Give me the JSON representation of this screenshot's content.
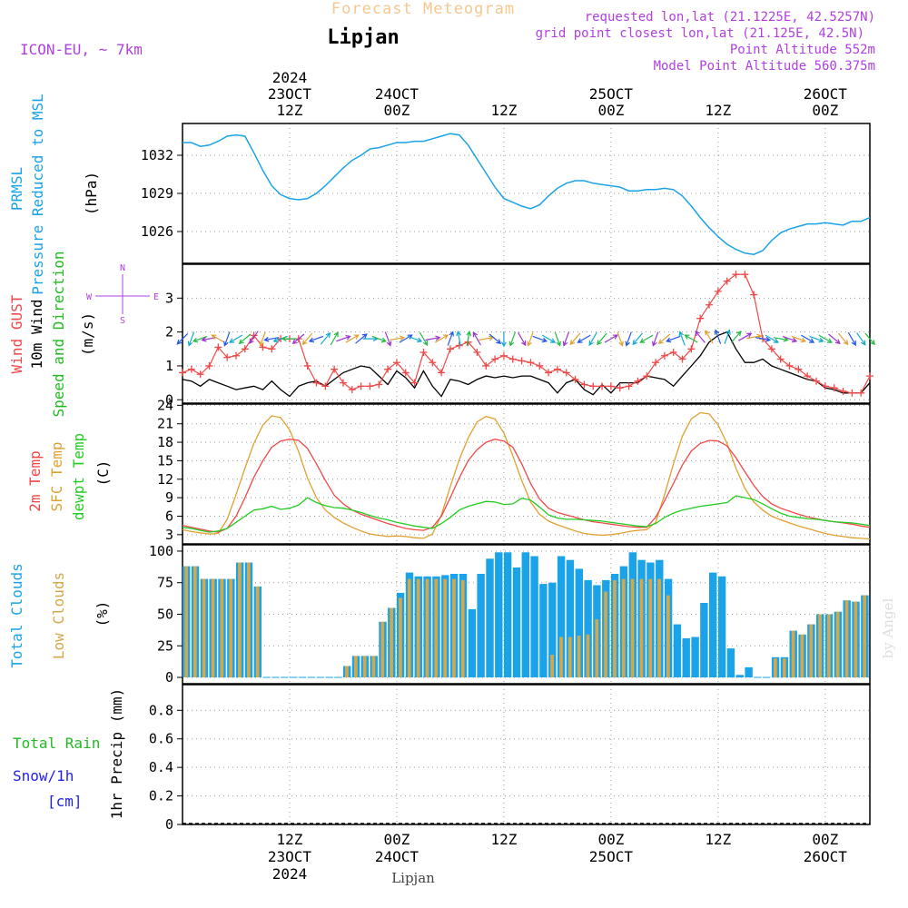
{
  "header": {
    "title": "Forecast Meteogram",
    "location": "Lipjan",
    "model": "ICON-EU, ~ 7km",
    "requested": "requested lon,lat (21.1225E, 42.5257N)",
    "grid_point": "grid point closest lon,lat (21.125E, 42.5N)",
    "point_altitude": "Point Altitude 552m",
    "model_altitude": "Model Point Altitude 560.375m",
    "footer_location": "Lipjan",
    "watermark": "by Angel"
  },
  "colors": {
    "pressure": "#1aa3e8",
    "gust": "#f04848",
    "wind": "#000000",
    "wind_dir": "#22bb22",
    "temp2m": "#f04848",
    "sfc_temp": "#e0a030",
    "dewpt": "#22cc22",
    "total_clouds": "#1aa3e8",
    "low_clouds": "#d4a84a",
    "rain": "#22bb22",
    "snow": "#2222ee",
    "purple": "#b040e0",
    "title": "#f4c890"
  },
  "time_axis": {
    "top_labels": [
      {
        "h": 12,
        "lines": [
          "2024",
          "23OCT",
          "12Z"
        ]
      },
      {
        "h": 24,
        "lines": [
          "24OCT",
          "00Z"
        ]
      },
      {
        "h": 36,
        "lines": [
          "12Z"
        ]
      },
      {
        "h": 48,
        "lines": [
          "25OCT",
          "00Z"
        ]
      },
      {
        "h": 60,
        "lines": [
          "12Z"
        ]
      },
      {
        "h": 72,
        "lines": [
          "26OCT",
          "00Z"
        ]
      }
    ],
    "bottom_labels": [
      {
        "h": 12,
        "lines": [
          "12Z",
          "23OCT",
          "2024"
        ]
      },
      {
        "h": 24,
        "lines": [
          "00Z",
          "24OCT"
        ]
      },
      {
        "h": 36,
        "lines": [
          "12Z"
        ]
      },
      {
        "h": 48,
        "lines": [
          "00Z",
          "25OCT"
        ]
      },
      {
        "h": 60,
        "lines": [
          "12Z"
        ]
      },
      {
        "h": 72,
        "lines": [
          "00Z",
          "26OCT"
        ]
      }
    ]
  },
  "panels": {
    "pressure": {
      "labels": [
        "PRMSL",
        "Pressure Reduced to MSL"
      ],
      "unit": "(hPa)"
    },
    "wind": {
      "labels": [
        "Wind GUST",
        "10m Wind",
        "Speed and Direction"
      ],
      "unit": "(m/s)",
      "compass": {
        "n": "N",
        "s": "S",
        "e": "E",
        "w": "W"
      }
    },
    "temp": {
      "labels": [
        "2m Temp",
        "SFC Temp",
        "dewpt Temp"
      ],
      "unit": "(C)"
    },
    "clouds": {
      "labels": [
        "Total Clouds",
        "Low Clouds"
      ],
      "unit": "(%)"
    },
    "precip": {
      "labels": [
        "Total Rain",
        "Snow/1h",
        "[cm]"
      ],
      "unit": "1hr Precip (mm)"
    }
  },
  "chart_data": {
    "type": "line",
    "x_unit": "hours from 23OCT 00Z",
    "x_range": [
      0,
      77
    ],
    "pressure": {
      "ylim": [
        1023.5,
        1034.5
      ],
      "ticks": [
        "1026",
        "1029",
        "1032"
      ],
      "x": [
        0,
        1,
        2,
        3,
        4,
        5,
        6,
        7,
        8,
        9,
        10,
        11,
        12,
        13,
        14,
        15,
        16,
        17,
        18,
        19,
        20,
        21,
        22,
        23,
        24,
        25,
        26,
        27,
        28,
        29,
        30,
        31,
        32,
        33,
        34,
        35,
        36,
        37,
        38,
        39,
        40,
        41,
        42,
        43,
        44,
        45,
        46,
        47,
        48,
        49,
        50,
        51,
        52,
        53,
        54,
        55,
        56,
        57,
        58,
        59,
        60,
        61,
        62,
        63,
        64,
        65,
        66,
        67,
        68,
        69,
        70,
        71,
        72,
        73,
        74,
        75,
        76,
        77
      ],
      "values": [
        1033.0,
        1033.0,
        1032.7,
        1032.8,
        1033.1,
        1033.5,
        1033.6,
        1033.5,
        1032.2,
        1030.8,
        1029.6,
        1028.9,
        1028.6,
        1028.5,
        1028.6,
        1029.0,
        1029.6,
        1030.3,
        1031.0,
        1031.6,
        1032.0,
        1032.5,
        1032.6,
        1032.8,
        1033.0,
        1033.0,
        1033.1,
        1033.1,
        1033.3,
        1033.5,
        1033.7,
        1033.6,
        1032.8,
        1031.7,
        1030.6,
        1029.5,
        1028.6,
        1028.3,
        1028.0,
        1027.8,
        1028.1,
        1028.8,
        1029.4,
        1029.8,
        1030.0,
        1030.0,
        1029.8,
        1029.7,
        1029.6,
        1029.5,
        1029.2,
        1029.2,
        1029.3,
        1029.3,
        1029.4,
        1029.3,
        1028.8,
        1028.0,
        1027.1,
        1026.3,
        1025.6,
        1025.0,
        1024.6,
        1024.3,
        1024.2,
        1024.5,
        1025.3,
        1025.9,
        1026.2,
        1026.4,
        1026.6,
        1026.6,
        1026.7,
        1026.6,
        1026.5,
        1026.8,
        1026.8,
        1027.1
      ]
    },
    "wind": {
      "ylim": [
        -0.1,
        4.0
      ],
      "ticks": [
        "0",
        "1",
        "2",
        "3"
      ],
      "x": [
        0,
        1,
        2,
        3,
        4,
        5,
        6,
        7,
        8,
        9,
        10,
        11,
        12,
        13,
        14,
        15,
        16,
        17,
        18,
        19,
        20,
        21,
        22,
        23,
        24,
        25,
        26,
        27,
        28,
        29,
        30,
        31,
        32,
        33,
        34,
        35,
        36,
        37,
        38,
        39,
        40,
        41,
        42,
        43,
        44,
        45,
        46,
        47,
        48,
        49,
        50,
        51,
        52,
        53,
        54,
        55,
        56,
        57,
        58,
        59,
        60,
        61,
        62,
        63,
        64,
        65,
        66,
        67,
        68,
        69,
        70,
        71,
        72,
        73,
        74,
        75,
        76,
        77
      ],
      "gust": [
        0.8,
        0.9,
        0.75,
        1.0,
        1.55,
        1.25,
        1.3,
        1.5,
        1.9,
        1.55,
        1.5,
        1.8,
        1.8,
        1.8,
        1.0,
        0.5,
        0.4,
        0.9,
        0.5,
        0.3,
        0.4,
        0.4,
        0.45,
        0.9,
        1.1,
        0.8,
        0.5,
        1.4,
        1.1,
        0.8,
        1.5,
        1.6,
        1.7,
        1.4,
        1.0,
        1.2,
        1.3,
        1.2,
        1.15,
        1.1,
        1.0,
        0.8,
        0.9,
        0.8,
        0.6,
        0.45,
        0.4,
        0.4,
        0.4,
        0.35,
        0.4,
        0.55,
        0.7,
        1.1,
        1.3,
        1.4,
        1.2,
        1.5,
        2.4,
        2.8,
        3.2,
        3.5,
        3.7,
        3.7,
        3.1,
        1.8,
        1.5,
        1.2,
        1.0,
        0.9,
        0.7,
        0.55,
        0.4,
        0.35,
        0.25,
        0.2,
        0.2,
        0.7
      ],
      "speed": [
        0.6,
        0.55,
        0.4,
        0.6,
        0.5,
        0.4,
        0.3,
        0.35,
        0.4,
        0.3,
        0.55,
        0.3,
        0.1,
        0.4,
        0.5,
        0.55,
        0.4,
        0.6,
        0.8,
        0.9,
        1.0,
        0.95,
        0.7,
        0.45,
        0.85,
        0.65,
        0.35,
        0.85,
        0.4,
        0.1,
        0.6,
        0.55,
        0.45,
        0.6,
        0.7,
        0.65,
        0.7,
        0.65,
        0.7,
        0.7,
        0.6,
        0.5,
        0.2,
        0.5,
        0.6,
        0.3,
        0.15,
        0.45,
        0.2,
        0.5,
        0.5,
        0.5,
        0.7,
        0.65,
        0.6,
        0.4,
        0.7,
        1.0,
        1.3,
        1.7,
        1.9,
        2.0,
        1.5,
        1.1,
        1.1,
        1.2,
        1.0,
        0.9,
        0.8,
        0.7,
        0.6,
        0.55,
        0.35,
        0.3,
        0.2,
        0.2,
        0.2,
        0.5
      ],
      "dir_deg": [
        225,
        200,
        250,
        260,
        300,
        200,
        240,
        230,
        215,
        200,
        260,
        250,
        270,
        230,
        220,
        250,
        40,
        30,
        70,
        60,
        50,
        90,
        110,
        160,
        80,
        60,
        110,
        150,
        80,
        60,
        20,
        350,
        10,
        330,
        80,
        130,
        180,
        200,
        150,
        200,
        110,
        120,
        160,
        200,
        220,
        240,
        210,
        220,
        60,
        160,
        200,
        220,
        240,
        200,
        230,
        250,
        340,
        300,
        320,
        330,
        340,
        20,
        40,
        60,
        80,
        100,
        120,
        100,
        110,
        110,
        120,
        110,
        120,
        130,
        140,
        150,
        145,
        140
      ]
    },
    "temp": {
      "ylim": [
        1.5,
        24.2
      ],
      "ticks": [
        "3",
        "6",
        "9",
        "12",
        "15",
        "18",
        "21",
        "24"
      ],
      "x": [
        0,
        1,
        2,
        3,
        4,
        5,
        6,
        7,
        8,
        9,
        10,
        11,
        12,
        13,
        14,
        15,
        16,
        17,
        18,
        19,
        20,
        21,
        22,
        23,
        24,
        25,
        26,
        27,
        28,
        29,
        30,
        31,
        32,
        33,
        34,
        35,
        36,
        37,
        38,
        39,
        40,
        41,
        42,
        43,
        44,
        45,
        46,
        47,
        48,
        49,
        50,
        51,
        52,
        53,
        54,
        55,
        56,
        57,
        58,
        59,
        60,
        61,
        62,
        63,
        64,
        65,
        66,
        67,
        68,
        69,
        70,
        71,
        72,
        73,
        74,
        75,
        76,
        77
      ],
      "t2m": [
        4.5,
        4.2,
        3.9,
        3.6,
        3.4,
        4.0,
        6.0,
        9.0,
        12.3,
        15.0,
        17.2,
        18.2,
        18.5,
        18.3,
        17.0,
        14.5,
        11.8,
        9.4,
        8.0,
        7.0,
        6.3,
        5.8,
        5.3,
        4.8,
        4.4,
        4.0,
        3.8,
        3.7,
        4.2,
        6.0,
        9.0,
        12.2,
        15.0,
        16.8,
        18.0,
        18.5,
        18.2,
        17.2,
        14.5,
        11.3,
        8.8,
        7.3,
        6.6,
        6.2,
        5.8,
        5.4,
        5.1,
        4.9,
        4.7,
        4.5,
        4.3,
        4.2,
        4.2,
        5.8,
        8.5,
        11.3,
        14.3,
        16.6,
        17.8,
        18.3,
        18.2,
        17.4,
        15.5,
        13.2,
        11.0,
        9.2,
        8.0,
        7.3,
        6.8,
        6.3,
        5.9,
        5.6,
        5.3,
        5.1,
        4.9,
        4.7,
        4.4,
        4.2
      ],
      "sfc": [
        3.8,
        3.5,
        3.3,
        3.1,
        3.2,
        5.5,
        9.5,
        13.8,
        17.8,
        20.8,
        22.3,
        22.0,
        20.0,
        16.5,
        12.2,
        9.0,
        7.0,
        5.8,
        4.9,
        4.2,
        3.6,
        3.1,
        2.9,
        2.7,
        2.8,
        2.7,
        2.5,
        2.4,
        3.1,
        6.2,
        10.8,
        15.2,
        18.7,
        21.3,
        22.2,
        21.8,
        19.5,
        15.8,
        11.8,
        8.3,
        6.3,
        5.2,
        4.6,
        4.1,
        3.6,
        3.2,
        3.0,
        2.9,
        3.0,
        3.2,
        3.5,
        3.7,
        3.8,
        5.0,
        9.5,
        14.5,
        19.0,
        21.8,
        22.8,
        22.6,
        20.8,
        17.8,
        13.8,
        10.5,
        8.3,
        7.0,
        6.0,
        5.4,
        4.9,
        4.4,
        4.0,
        3.6,
        3.2,
        2.9,
        2.7,
        2.5,
        2.4,
        2.3
      ],
      "dewpt": [
        4.2,
        4.0,
        3.7,
        3.4,
        3.6,
        4.0,
        5.0,
        6.0,
        7.0,
        7.2,
        7.6,
        7.1,
        7.3,
        7.8,
        9.0,
        8.2,
        7.7,
        7.4,
        7.3,
        7.0,
        6.6,
        6.1,
        5.7,
        5.4,
        5.0,
        4.7,
        4.4,
        4.2,
        4.0,
        4.8,
        5.8,
        7.0,
        7.6,
        8.0,
        8.4,
        8.3,
        7.9,
        8.0,
        8.9,
        8.6,
        7.5,
        6.2,
        5.7,
        5.5,
        5.5,
        5.4,
        5.3,
        5.2,
        5.0,
        4.8,
        4.6,
        4.4,
        4.3,
        4.8,
        5.8,
        6.5,
        7.0,
        7.3,
        7.6,
        7.8,
        8.0,
        8.2,
        9.3,
        9.0,
        8.7,
        8.0,
        7.2,
        6.5,
        6.0,
        5.8,
        5.6,
        5.5,
        5.3,
        5.1,
        5.0,
        4.9,
        4.7,
        4.5
      ]
    },
    "clouds": {
      "ylim": [
        -5,
        105
      ],
      "ticks": [
        "0",
        "25",
        "50",
        "75",
        "100"
      ],
      "total": [
        88,
        88,
        78,
        78,
        78,
        78,
        91,
        91,
        72,
        0,
        0,
        0,
        0,
        0,
        0,
        0,
        0,
        0,
        9,
        17,
        17,
        17,
        44,
        55,
        67,
        83,
        80,
        80,
        80,
        81,
        82,
        82,
        54,
        82,
        94,
        99,
        99,
        87,
        99,
        96,
        74,
        75,
        96,
        93,
        86,
        77,
        73,
        77,
        82,
        88,
        99,
        93,
        91,
        93,
        78,
        42,
        31,
        32,
        59,
        83,
        80,
        23,
        2,
        8,
        0,
        0,
        16,
        16,
        37,
        34,
        42,
        50,
        50,
        52,
        61,
        60,
        65
      ],
      "low": [
        88,
        88,
        78,
        78,
        78,
        78,
        91,
        91,
        72,
        0,
        0,
        0,
        0,
        0,
        0,
        0,
        0,
        0,
        9,
        17,
        17,
        17,
        44,
        55,
        63,
        78,
        78,
        78,
        78,
        78,
        78,
        77,
        0,
        0,
        0,
        0,
        0,
        0,
        0,
        0,
        0,
        18,
        32,
        32,
        33,
        34,
        46,
        68,
        77,
        78,
        78,
        78,
        78,
        78,
        65,
        0,
        0,
        0,
        0,
        0,
        0,
        0,
        0,
        0,
        0,
        0,
        15,
        15,
        37,
        34,
        42,
        50,
        50,
        52,
        61,
        60,
        65
      ]
    },
    "precip": {
      "ylim": [
        0,
        0.98
      ],
      "ticks": [
        "0",
        "0.2",
        "0.4",
        "0.6",
        "0.8"
      ],
      "rain": [],
      "snow": []
    }
  }
}
